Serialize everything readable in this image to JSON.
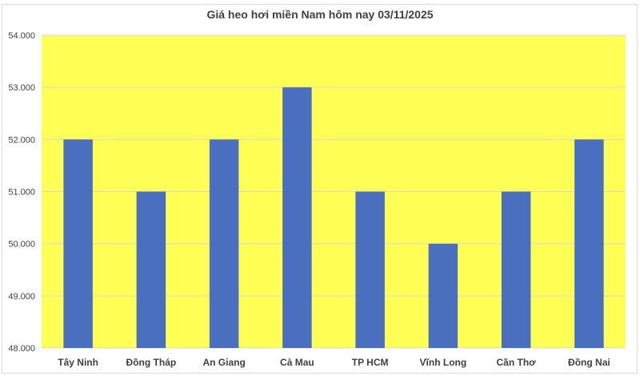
{
  "chart_data": {
    "type": "bar",
    "title": "Giá heo hơi miền Nam hôm nay 03/11/2025",
    "categories": [
      "Tây Ninh",
      "Đồng Tháp",
      "An Giang",
      "Cà Mau",
      "TP HCM",
      "Vĩnh Long",
      "Cần Thơ",
      "Đồng Nai"
    ],
    "values": [
      52000,
      51000,
      52000,
      53000,
      51000,
      50000,
      51000,
      52000
    ],
    "ylim": [
      48000,
      54000
    ],
    "yticks": [
      "48.000",
      "49.000",
      "50.000",
      "51.000",
      "52.000",
      "53.000",
      "54.000"
    ],
    "xlabel": "",
    "ylabel": "",
    "grid": true,
    "colors": {
      "bar": "#4a6fbf",
      "plot_background": "#ffff55",
      "gridline": "#d9d9d9"
    }
  }
}
